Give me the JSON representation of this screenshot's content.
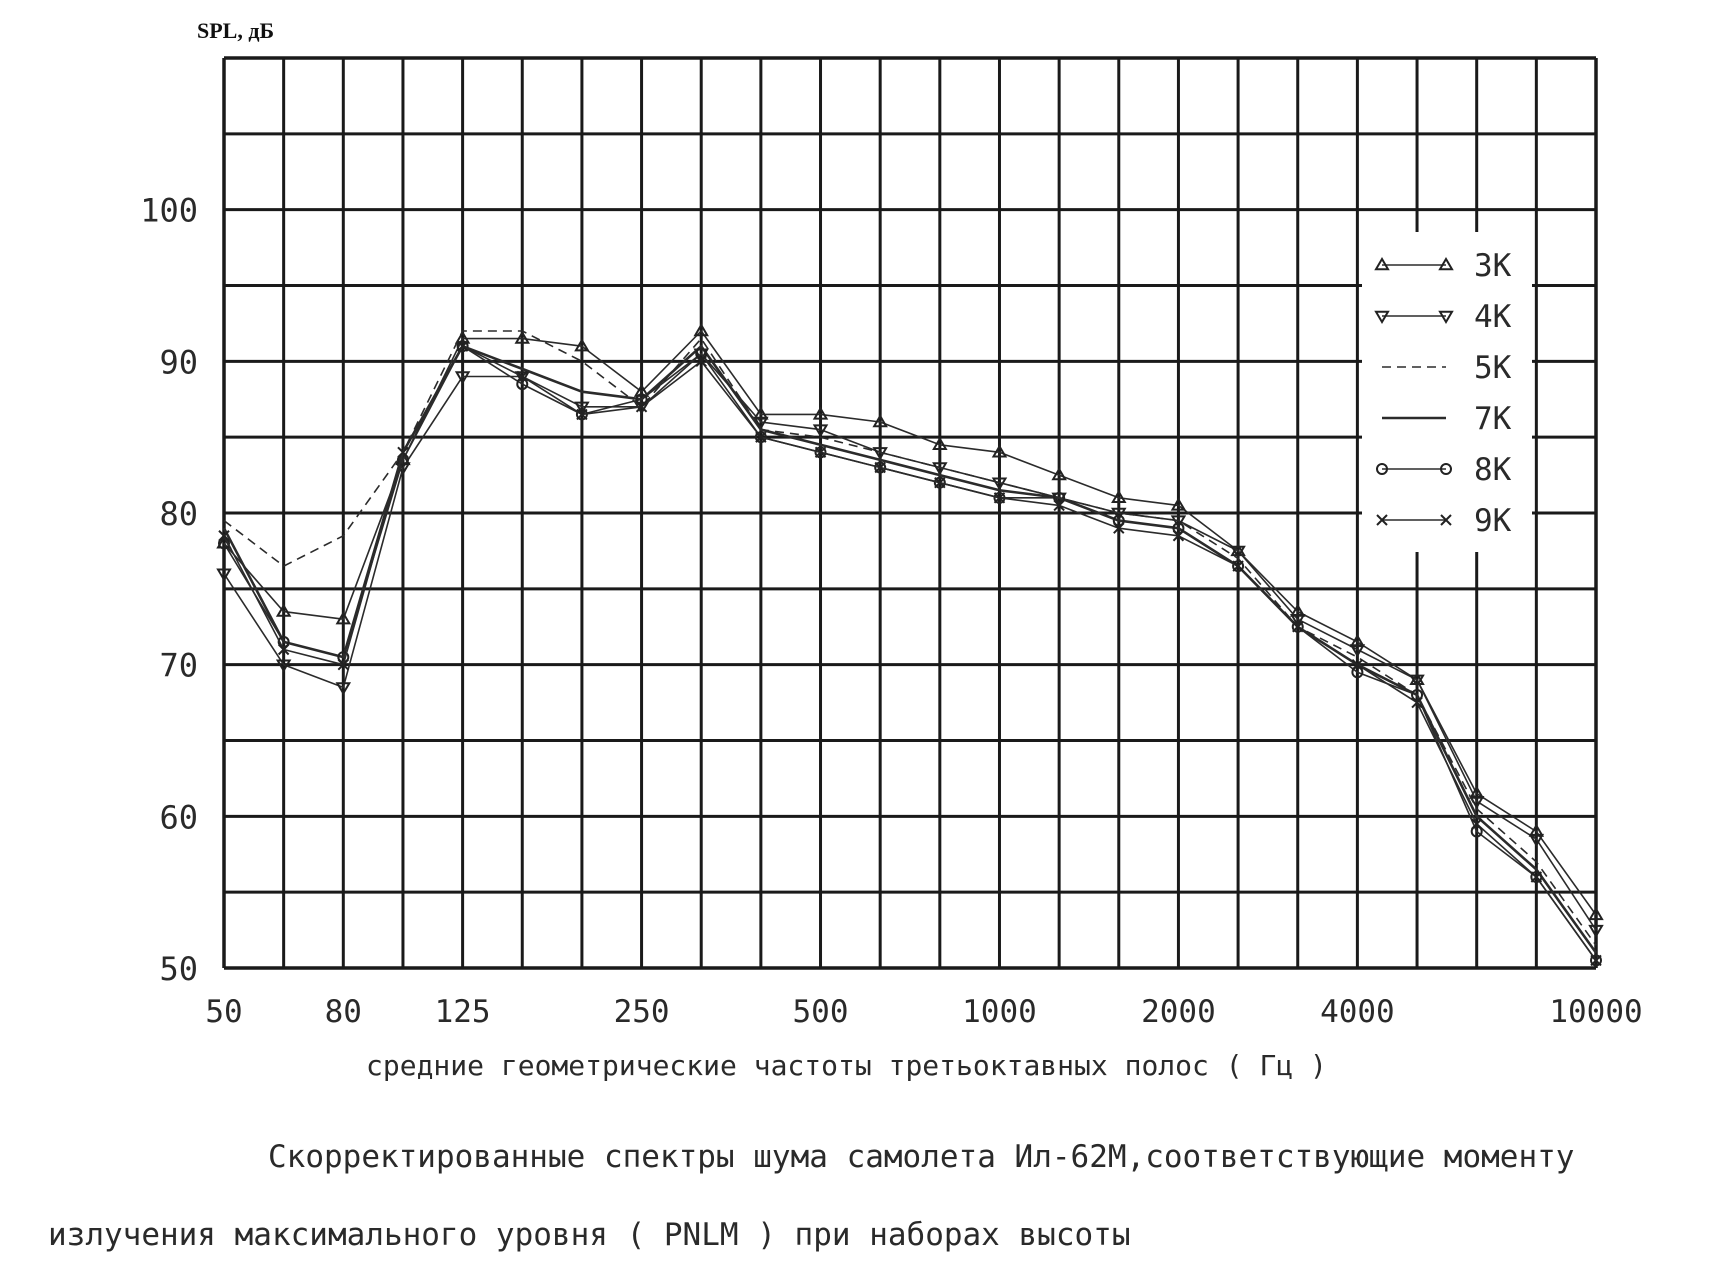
{
  "chart_data": {
    "type": "line",
    "ylabel": "SPL, дБ",
    "xlabel": "средние геометрические частоты третьоктавных полос ( Гц )",
    "x_tick_labels": [
      "50",
      "80",
      "125",
      "250",
      "500",
      "1000",
      "2000",
      "4000",
      "10000"
    ],
    "x_tick_values": [
      50,
      80,
      125,
      250,
      500,
      1000,
      2000,
      4000,
      10000
    ],
    "y_tick_labels": [
      "100",
      "90",
      "80",
      "70",
      "60",
      "50"
    ],
    "y_tick_values": [
      100,
      90,
      80,
      70,
      60,
      50
    ],
    "ylim": [
      50,
      110
    ],
    "x_scale": "log (one-third octave bands)",
    "grid": true,
    "legend_position": "top-right",
    "x": [
      50,
      63,
      80,
      100,
      125,
      160,
      200,
      250,
      315,
      400,
      500,
      630,
      800,
      1000,
      1250,
      1600,
      2000,
      2500,
      3150,
      4000,
      5000,
      6300,
      8000,
      10000
    ],
    "series": [
      {
        "name": "3К",
        "marker": "triangle-up",
        "dash": "solid",
        "values": [
          78,
          73.5,
          73,
          83.5,
          91.5,
          91.5,
          91,
          88,
          92,
          86.5,
          86.5,
          86,
          84.5,
          84,
          82.5,
          81,
          80.5,
          77.5,
          73.5,
          71.5,
          69,
          61.5,
          59,
          53.5
        ]
      },
      {
        "name": "4К",
        "marker": "triangle-down",
        "dash": "solid",
        "values": [
          76,
          70,
          68.5,
          83,
          89,
          89,
          87,
          87,
          90.5,
          86,
          85.5,
          84,
          83,
          82,
          81,
          80,
          79.5,
          77.5,
          73,
          71,
          69,
          61,
          58.5,
          52.5
        ]
      },
      {
        "name": "5К",
        "marker": "none",
        "dash": "dashed",
        "values": [
          79.5,
          76.5,
          78.5,
          84,
          92,
          92,
          90,
          87,
          91.5,
          85.5,
          85,
          84,
          83,
          82,
          81,
          80,
          79.5,
          77,
          72.5,
          70.5,
          68,
          60.5,
          57,
          51.5
        ]
      },
      {
        "name": "7К",
        "marker": "none",
        "dash": "solid-bold",
        "values": [
          79,
          71.5,
          70.5,
          84,
          91,
          89.5,
          88,
          87.5,
          91,
          85.5,
          84.5,
          83.5,
          82.5,
          81.5,
          81,
          79.5,
          79,
          76.5,
          72.5,
          70,
          68,
          60,
          56.5,
          51
        ]
      },
      {
        "name": "8К",
        "marker": "circle",
        "dash": "solid",
        "values": [
          78,
          71.5,
          70.5,
          83.5,
          91,
          88.5,
          86.5,
          87.5,
          90.5,
          85,
          84,
          83,
          82,
          81,
          81,
          79.5,
          79,
          76.5,
          72.5,
          69.5,
          68,
          59,
          56,
          50.5
        ]
      },
      {
        "name": "9К",
        "marker": "x",
        "dash": "solid",
        "values": [
          78.5,
          71,
          70,
          84,
          91,
          89,
          86.5,
          87,
          90,
          85,
          84,
          83,
          82,
          81,
          80.5,
          79,
          78.5,
          76.5,
          72.5,
          70,
          67.5,
          59.5,
          56,
          50.5
        ]
      }
    ]
  },
  "caption": {
    "line1": "Скорректированные спектры шума самолета Ил-62М,соответствующие моменту",
    "line2": "излучения максимального уровня ( PNLM ) при наборах высоты"
  }
}
